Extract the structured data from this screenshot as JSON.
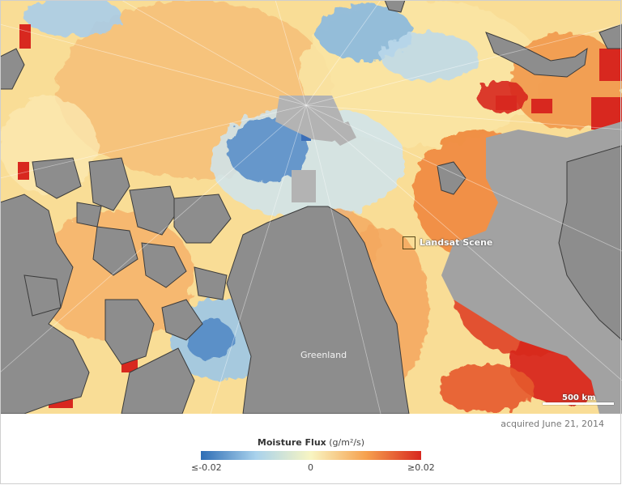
{
  "map": {
    "place_label": "Greenland",
    "landsat_label": "Landsat Scene",
    "scale_label": "500 km",
    "acquired": "acquired June 21, 2014"
  },
  "legend": {
    "title": "Moisture Flux",
    "unit": "(g/m²/s)",
    "min_label": "≤-0.02",
    "mid_label": "0",
    "max_label": "≥0.02",
    "colors": [
      "#2e6db5",
      "#a9d2ec",
      "#f8f5c2",
      "#f6a14e",
      "#d8281f"
    ]
  },
  "colors": {
    "land": "#8d8d8d",
    "ice_gap": "#b5b5b5",
    "coast": "#3b3b3b"
  }
}
